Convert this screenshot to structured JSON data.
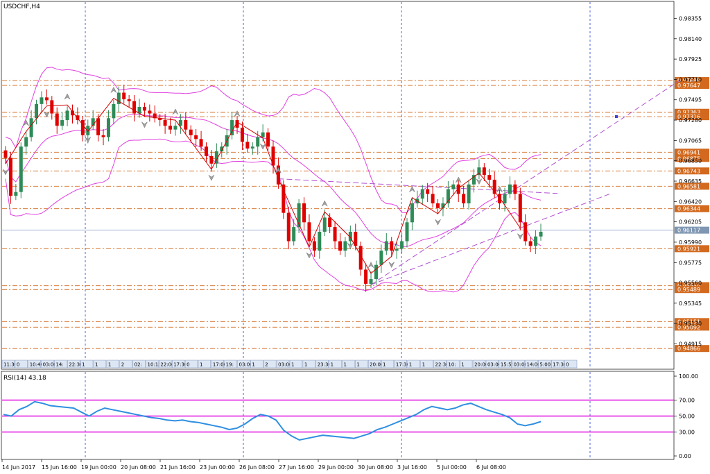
{
  "chart_data": [
    {
      "type": "candlestick",
      "title": "USDCHF,H4",
      "ylim": [
        0.9475,
        0.9852
      ],
      "y_ticks": [
        "0.98355",
        "0.98140",
        "0.97925",
        "0.97710",
        "0.97495",
        "0.97280",
        "0.97065",
        "0.96850",
        "0.96635",
        "0.96420",
        "0.96205",
        "0.95990",
        "0.95775",
        "0.95560",
        "0.95345",
        "0.95130",
        "0.94915"
      ],
      "bid_price": "0.96117",
      "level_lines": [
        "0.97698",
        "0.97647",
        "0.97363",
        "0.97316",
        "0.96941",
        "0.96875",
        "0.96743",
        "0.96581",
        "0.96344",
        "0.95921",
        "0.95530",
        "0.95489",
        "0.95151",
        "0.95092",
        "0.94866"
      ],
      "close_series": [
        0.9688,
        0.9648,
        0.9652,
        0.97,
        0.971,
        0.973,
        0.9745,
        0.9752,
        0.9749,
        0.9735,
        0.9722,
        0.9728,
        0.9738,
        0.9733,
        0.9728,
        0.9712,
        0.9722,
        0.973,
        0.9712,
        0.971,
        0.973,
        0.9745,
        0.9757,
        0.975,
        0.9748,
        0.9735,
        0.9742,
        0.9738,
        0.9735,
        0.973,
        0.9728,
        0.9722,
        0.9718,
        0.9722,
        0.9728,
        0.9718,
        0.9712,
        0.9708,
        0.97,
        0.969,
        0.9682,
        0.9695,
        0.97,
        0.9712,
        0.9728,
        0.972,
        0.9705,
        0.9698,
        0.97,
        0.971,
        0.9715,
        0.97,
        0.968,
        0.966,
        0.963,
        0.96,
        0.9615,
        0.964,
        0.962,
        0.96,
        0.959,
        0.961,
        0.9625,
        0.9615,
        0.96,
        0.959,
        0.96,
        0.961,
        0.9595,
        0.957,
        0.9555,
        0.956,
        0.9575,
        0.959,
        0.96,
        0.959,
        0.9592,
        0.96,
        0.962,
        0.964,
        0.9645,
        0.9655,
        0.965,
        0.964,
        0.9635,
        0.964,
        0.9655,
        0.966,
        0.965,
        0.964,
        0.966,
        0.967,
        0.9678,
        0.967,
        0.9665,
        0.965,
        0.964,
        0.965,
        0.966,
        0.965,
        0.962,
        0.96,
        0.9595,
        0.9605,
        0.961
      ],
      "swing_points": [
        {
          "i": 0,
          "up": false
        },
        {
          "i": 4,
          "up": true
        },
        {
          "i": 8,
          "up": false
        },
        {
          "i": 12,
          "up": true
        },
        {
          "i": 16,
          "up": false
        },
        {
          "i": 21,
          "up": true
        },
        {
          "i": 27,
          "up": false
        },
        {
          "i": 33,
          "up": true
        },
        {
          "i": 40,
          "up": false
        },
        {
          "i": 45,
          "up": true
        },
        {
          "i": 50,
          "up": false
        },
        {
          "i": 53,
          "up": true
        },
        {
          "i": 59,
          "up": false
        },
        {
          "i": 62,
          "up": true
        },
        {
          "i": 67,
          "up": false
        },
        {
          "i": 71,
          "up": true
        },
        {
          "i": 75,
          "up": false
        },
        {
          "i": 79,
          "up": true
        },
        {
          "i": 84,
          "up": false
        },
        {
          "i": 88,
          "up": true
        },
        {
          "i": 92,
          "up": false
        },
        {
          "i": 96,
          "up": true
        },
        {
          "i": 100,
          "up": false
        }
      ],
      "grid_verticals": 4,
      "rsi": {
        "label": "RSI(14) 43.18",
        "ylim": [
          0,
          100
        ],
        "y_ticks": [
          "100.00",
          "70.00",
          "50.00",
          "30.00",
          "0.00"
        ],
        "levels": [
          70,
          50,
          30
        ],
        "values": [
          52,
          50,
          58,
          62,
          68,
          66,
          63,
          62,
          61,
          60,
          55,
          50,
          56,
          60,
          58,
          56,
          54,
          52,
          50,
          48,
          47,
          45,
          44,
          45,
          43,
          42,
          40,
          38,
          36,
          33,
          35,
          40,
          47,
          52,
          50,
          45,
          32,
          25,
          20,
          22,
          24,
          26,
          25,
          24,
          23,
          22,
          25,
          28,
          33,
          36,
          40,
          44,
          48,
          52,
          58,
          62,
          60,
          58,
          60,
          64,
          66,
          62,
          58,
          55,
          52,
          48,
          40,
          38,
          40,
          43
        ],
        "x_labels": [
          "14 Jun 2017",
          "15 Jun 16:00",
          "19 Jun 00:00",
          "20 Jun 08:00",
          "21 Jun 16:00",
          "23 Jun 00:00",
          "26 Jun 08:00",
          "27 Jun 16:00",
          "29 Jun 00:00",
          "30 Jun 08:00",
          "3 Jul 16:00",
          "5 Jul 00:00",
          "6 Jul 08:00"
        ]
      },
      "time_tags": [
        "11:30",
        "0",
        "10:40",
        "03:00",
        "14:",
        "22:30",
        "1",
        "1",
        "1",
        "2",
        "02:",
        "10:15",
        "22:00",
        "17:30",
        "0",
        "1",
        "17:00",
        "19:",
        "03:00",
        "1",
        "2",
        "03:00",
        "1",
        "1",
        "23:30",
        "1",
        "1",
        "1",
        "20:00",
        "1",
        "17:30",
        "1",
        "1",
        "22:30",
        "10:",
        "1",
        "20:00",
        "03:00",
        "15:55",
        "03:00",
        "14:00",
        "5:00",
        "17:30",
        "0"
      ]
    }
  ]
}
